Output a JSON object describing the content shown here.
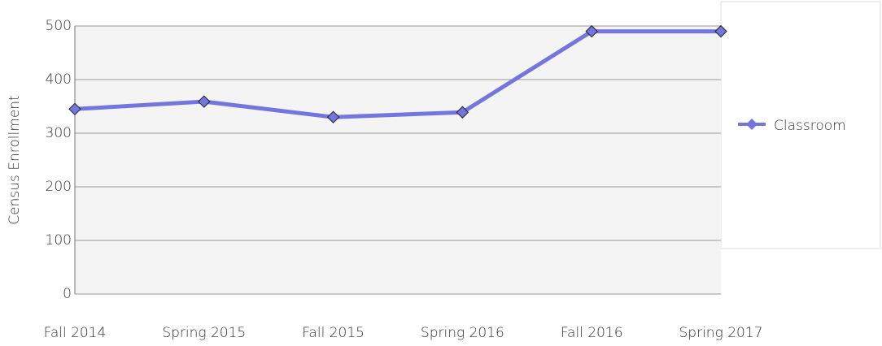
{
  "chart_data": {
    "type": "line",
    "y_label": "Census Enrollment",
    "categories": [
      "Fall 2014",
      "Spring 2015",
      "Fall 2015",
      "Spring 2016",
      "Fall 2016",
      "Spring 2017"
    ],
    "series": [
      {
        "name": "Classroom",
        "color": "#7575e0",
        "values": [
          345,
          359,
          330,
          339,
          490,
          490
        ]
      }
    ],
    "ylim": [
      0,
      500
    ],
    "yticks": [
      0,
      100,
      200,
      300,
      400,
      500
    ],
    "grid": true,
    "legend": "right"
  }
}
